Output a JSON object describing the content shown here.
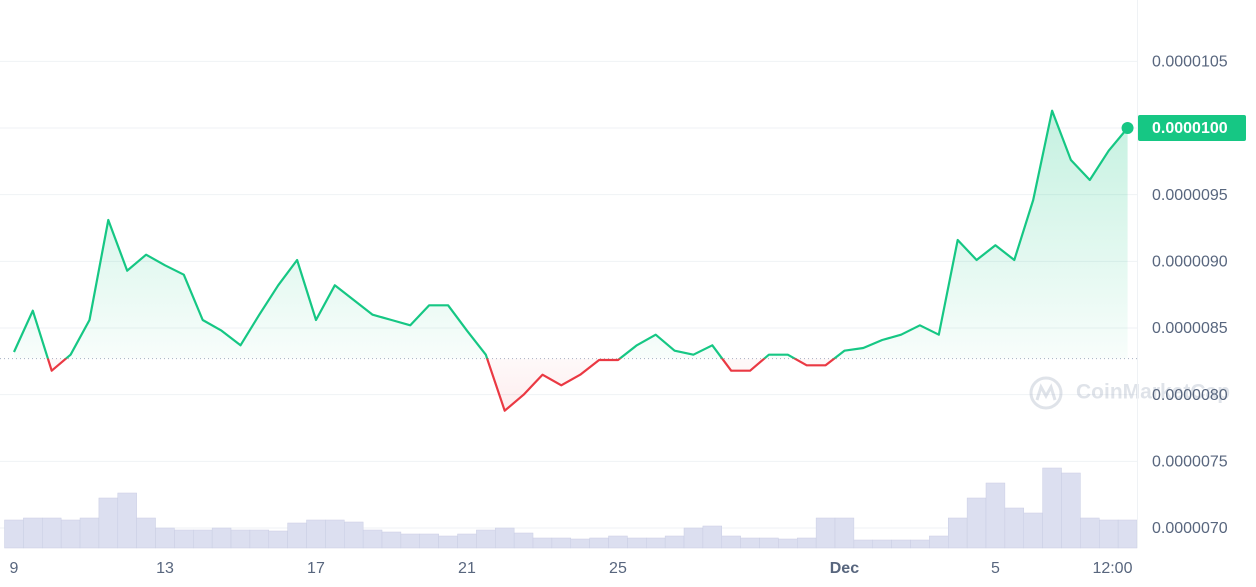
{
  "chart_data": {
    "type": "line",
    "x": [
      0,
      0.5,
      1,
      1.5,
      2,
      2.5,
      3,
      3.5,
      4,
      4.5,
      5,
      5.5,
      6,
      6.5,
      7,
      7.5,
      8,
      8.5,
      9,
      9.5,
      10,
      10.5,
      11,
      11.5,
      12,
      12.5,
      13,
      13.5,
      14,
      14.5,
      15,
      15.5,
      16,
      16.5,
      17,
      17.5,
      18,
      18.5,
      19,
      19.5,
      20,
      20.5,
      21,
      21.5,
      22,
      22.5,
      23,
      23.5,
      24,
      24.5,
      25,
      25.5,
      26,
      26.5,
      27,
      27.5,
      28,
      28.5,
      29,
      29.5
    ],
    "series": [
      {
        "color": "#16c784",
        "below_color": "#ea3943",
        "values": [
          8.32e-06,
          8.63e-06,
          8.18e-06,
          8.3e-06,
          8.56e-06,
          9.31e-06,
          8.93e-06,
          9.05e-06,
          8.97e-06,
          8.9e-06,
          8.56e-06,
          8.48e-06,
          8.37e-06,
          8.6e-06,
          8.82e-06,
          9.01e-06,
          8.56e-06,
          8.82e-06,
          8.71e-06,
          8.6e-06,
          8.56e-06,
          8.52e-06,
          8.67e-06,
          8.67e-06,
          8.48e-06,
          8.3e-06,
          7.88e-06,
          8e-06,
          8.15e-06,
          8.07e-06,
          8.15e-06,
          8.26e-06,
          8.26e-06,
          8.37e-06,
          8.45e-06,
          8.33e-06,
          8.3e-06,
          8.37e-06,
          8.18e-06,
          8.18e-06,
          8.3e-06,
          8.3e-06,
          8.22e-06,
          8.22e-06,
          8.33e-06,
          8.35e-06,
          8.41e-06,
          8.45e-06,
          8.52e-06,
          8.45e-06,
          9.16e-06,
          9.01e-06,
          9.12e-06,
          9.01e-06,
          9.46e-06,
          1.013e-05,
          9.76e-06,
          9.61e-06,
          9.83e-06,
          1e-05
        ]
      }
    ],
    "baseline": 8.27e-06,
    "last_value_label": "0.0000100",
    "volume": {
      "color": "#dcdff0",
      "values": [
        28,
        30,
        30,
        28,
        30,
        50,
        55,
        30,
        20,
        18,
        18,
        20,
        18,
        18,
        17,
        25,
        28,
        28,
        26,
        18,
        16,
        14,
        14,
        12,
        14,
        18,
        20,
        15,
        10,
        10,
        9,
        10,
        12,
        10,
        10,
        12,
        20,
        22,
        12,
        10,
        10,
        9,
        10,
        30,
        30,
        8,
        8,
        8,
        8,
        12,
        30,
        50,
        65,
        40,
        35,
        80,
        75,
        30,
        28,
        28
      ]
    },
    "xlim": [
      -0.37,
      29.75
    ],
    "ylim": [
      6.85e-06,
      1.096e-05
    ],
    "xticks": [
      {
        "value": 0,
        "label": "9"
      },
      {
        "value": 4,
        "label": "13"
      },
      {
        "value": 8,
        "label": "17"
      },
      {
        "value": 12,
        "label": "21"
      },
      {
        "value": 16,
        "label": "25"
      },
      {
        "value": 22,
        "label": "Dec"
      },
      {
        "value": 26,
        "label": "5"
      },
      {
        "value": 29.1,
        "label": "12:00"
      }
    ],
    "yticks": [
      {
        "value": 1.05e-05,
        "label": "0.0000105"
      },
      {
        "value": 1e-05,
        "label": "0.0000100"
      },
      {
        "value": 9.5e-06,
        "label": "0.0000095"
      },
      {
        "value": 9e-06,
        "label": "0.0000090"
      },
      {
        "value": 8.5e-06,
        "label": "0.0000085"
      },
      {
        "value": 8e-06,
        "label": "0.0000080"
      },
      {
        "value": 7.5e-06,
        "label": "0.0000075"
      },
      {
        "value": 7e-06,
        "label": "0.0000070"
      }
    ],
    "grid": true,
    "watermark": "CoinMarketCap"
  }
}
